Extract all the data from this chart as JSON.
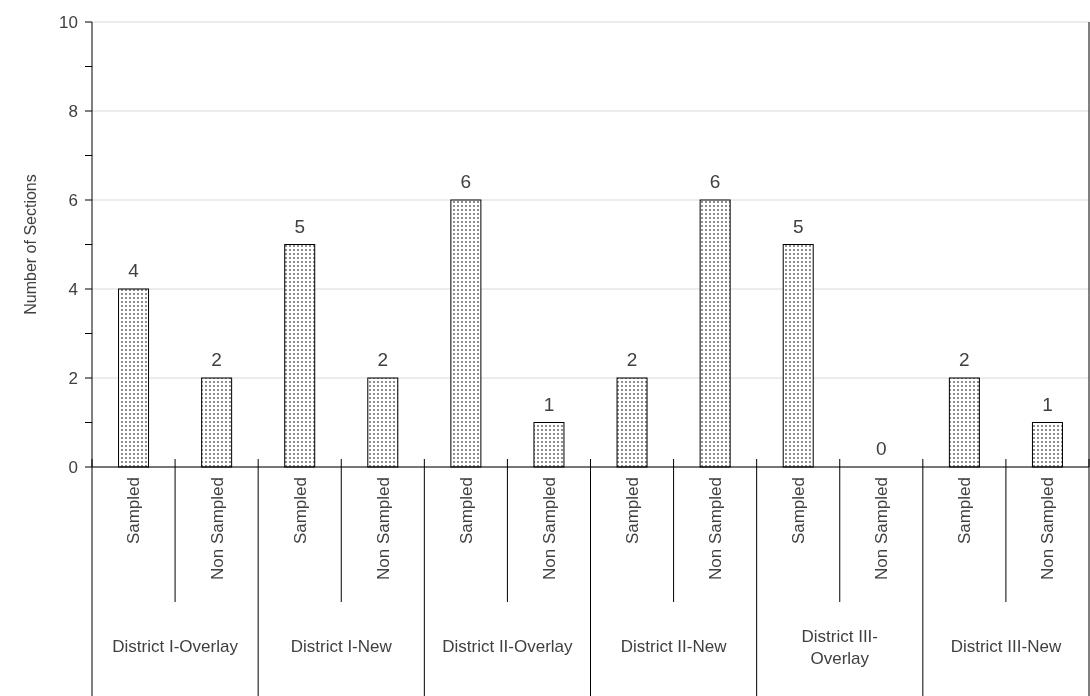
{
  "chart_data": {
    "type": "bar",
    "ylabel": "Number of Sections",
    "categories": [
      "Sampled",
      "Non Sampled",
      "Sampled",
      "Non Sampled",
      "Sampled",
      "Non Sampled",
      "Sampled",
      "Non Sampled",
      "Sampled",
      "Non Sampled",
      "Sampled",
      "Non Sampled"
    ],
    "values": [
      4,
      2,
      5,
      2,
      6,
      1,
      2,
      6,
      5,
      0,
      2,
      1
    ],
    "color": "#000000",
    "annotations": [
      "District I-Overlay",
      "District I-New",
      "District II-Overlay",
      "District II-New",
      "District III-Overlay",
      "District III-New"
    ],
    "ylim": [
      0,
      10
    ],
    "yticks": [
      0,
      {
        "value": 1,
        "label": null
      },
      2,
      {
        "value": 3,
        "label": null
      },
      4,
      {
        "value": 5,
        "label": null
      },
      6,
      {
        "value": 7,
        "label": null
      },
      8,
      {
        "value": 9,
        "label": null
      },
      10
    ],
    "grid": "y",
    "data_labels": true
  }
}
